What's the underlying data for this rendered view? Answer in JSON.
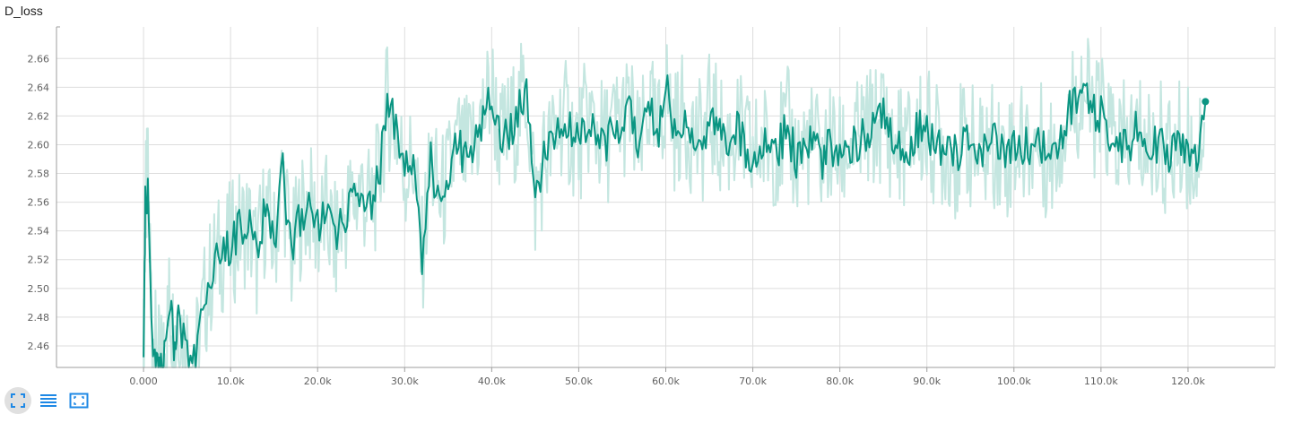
{
  "title": "D_loss",
  "colors": {
    "smoothed": "#0a9582",
    "raw": "#c4e6e0",
    "grid": "#dddddd",
    "icon": "#1e88e5"
  },
  "toolbar": {
    "expand_icon": "fullscreen-icon",
    "data_icon": "list-icon",
    "fit_icon": "fit-domain-icon"
  },
  "chart_data": {
    "type": "line",
    "title": "D_loss",
    "xlabel": "",
    "ylabel": "",
    "xlim": [
      -10000,
      130000
    ],
    "ylim": [
      2.445,
      2.682
    ],
    "x_ticks": [
      0,
      10000,
      20000,
      30000,
      40000,
      50000,
      60000,
      70000,
      80000,
      90000,
      100000,
      110000,
      120000
    ],
    "x_tick_labels": [
      "0.000",
      "10.0k",
      "20.0k",
      "30.0k",
      "40.0k",
      "50.0k",
      "60.0k",
      "70.0k",
      "80.0k",
      "90.0k",
      "100.0k",
      "110.0k",
      "120.0k"
    ],
    "y_ticks": [
      2.46,
      2.48,
      2.5,
      2.52,
      2.54,
      2.56,
      2.58,
      2.6,
      2.62,
      2.64,
      2.66
    ],
    "y_tick_labels": [
      "2.46",
      "2.48",
      "2.50",
      "2.52",
      "2.54",
      "2.56",
      "2.58",
      "2.60",
      "2.62",
      "2.64",
      "2.66"
    ],
    "grid": true,
    "series": [
      {
        "x": [
          0,
          200,
          500,
          1000,
          1500,
          2000,
          2500,
          3000,
          3500,
          4000,
          5000,
          6000,
          7000,
          8000,
          9000,
          10000,
          11000,
          12000,
          13000,
          14000,
          15000,
          16000,
          17000,
          18000,
          19000,
          20000,
          21000,
          22000,
          23000,
          24000,
          25000,
          26000,
          27000,
          28000,
          29000,
          30000,
          31000,
          32000,
          33000,
          34000,
          35000,
          36000,
          37000,
          38000,
          39000,
          40000,
          41000,
          42000,
          43000,
          44000,
          45000,
          46000,
          47000,
          48000,
          49000,
          50000,
          51000,
          52000,
          53000,
          54000,
          55000,
          56000,
          57000,
          58000,
          59000,
          60000,
          61000,
          62000,
          63000,
          64000,
          65000,
          66000,
          67000,
          68000,
          69000,
          70000,
          71000,
          72000,
          73000,
          74000,
          75000,
          76000,
          77000,
          78000,
          79000,
          80000,
          81000,
          82000,
          83000,
          84000,
          85000,
          86000,
          87000,
          88000,
          89000,
          90000,
          91000,
          92000,
          93000,
          94000,
          95000,
          96000,
          97000,
          98000,
          99000,
          100000,
          101000,
          102000,
          103000,
          104000,
          105000,
          106000,
          107000,
          108000,
          109000,
          110000,
          111000,
          112000,
          113000,
          114000,
          115000,
          116000,
          117000,
          118000,
          119000,
          120000,
          121000,
          122000
        ],
        "values": [
          2.44,
          2.556,
          2.573,
          2.47,
          2.45,
          2.44,
          2.455,
          2.492,
          2.46,
          2.48,
          2.46,
          2.45,
          2.49,
          2.515,
          2.525,
          2.53,
          2.54,
          2.545,
          2.52,
          2.555,
          2.53,
          2.58,
          2.52,
          2.55,
          2.56,
          2.54,
          2.55,
          2.53,
          2.55,
          2.56,
          2.57,
          2.555,
          2.575,
          2.63,
          2.61,
          2.58,
          2.59,
          2.52,
          2.59,
          2.56,
          2.575,
          2.6,
          2.59,
          2.6,
          2.62,
          2.64,
          2.6,
          2.61,
          2.62,
          2.64,
          2.56,
          2.59,
          2.6,
          2.62,
          2.61,
          2.6,
          2.62,
          2.61,
          2.6,
          2.61,
          2.62,
          2.62,
          2.59,
          2.63,
          2.6,
          2.64,
          2.61,
          2.62,
          2.61,
          2.6,
          2.62,
          2.61,
          2.6,
          2.61,
          2.6,
          2.59,
          2.6,
          2.6,
          2.6,
          2.61,
          2.59,
          2.6,
          2.6,
          2.59,
          2.6,
          2.59,
          2.6,
          2.6,
          2.61,
          2.61,
          2.62,
          2.6,
          2.6,
          2.6,
          2.61,
          2.61,
          2.6,
          2.6,
          2.59,
          2.6,
          2.6,
          2.59,
          2.6,
          2.6,
          2.59,
          2.6,
          2.6,
          2.6,
          2.6,
          2.59,
          2.6,
          2.62,
          2.63,
          2.64,
          2.62,
          2.62,
          2.61,
          2.6,
          2.6,
          2.61,
          2.6,
          2.6,
          2.6,
          2.59,
          2.6,
          2.6,
          2.59,
          2.63
        ]
      }
    ]
  }
}
